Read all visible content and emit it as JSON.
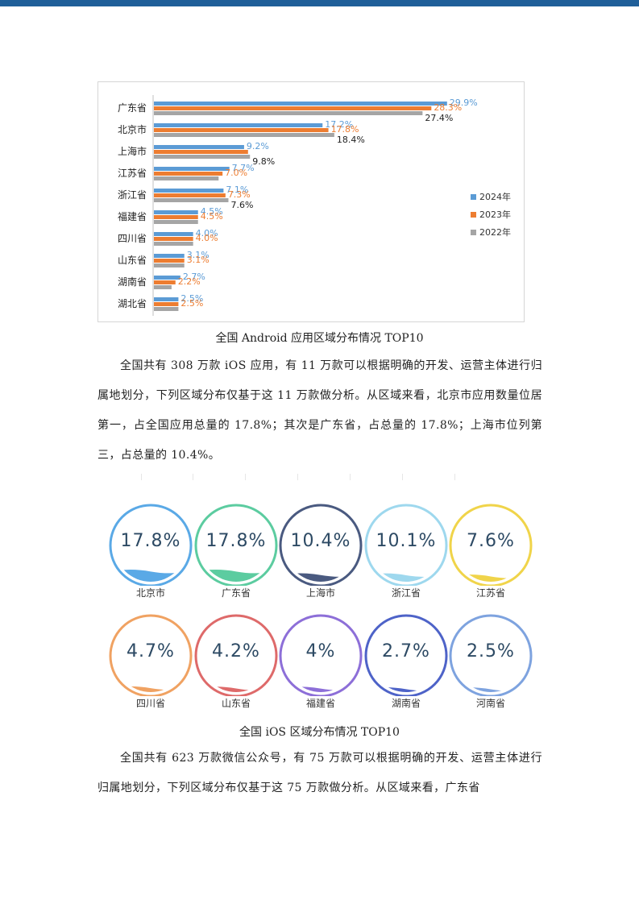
{
  "chart_data": {
    "type": "bar",
    "orientation": "horizontal",
    "categories": [
      "广东省",
      "北京市",
      "上海市",
      "江苏省",
      "浙江省",
      "福建省",
      "四川省",
      "山东省",
      "湖南省",
      "湖北省"
    ],
    "series": [
      {
        "name": "2024年",
        "color": "#5b9bd5",
        "values": [
          29.9,
          17.2,
          9.2,
          7.7,
          7.1,
          4.5,
          4.0,
          3.1,
          2.7,
          2.5
        ]
      },
      {
        "name": "2023年",
        "color": "#ed7d31",
        "values": [
          28.3,
          17.8,
          9.6,
          7.0,
          7.3,
          4.5,
          4.0,
          3.1,
          2.2,
          2.5
        ]
      },
      {
        "name": "2022年",
        "color": "#a5a5a5",
        "values": [
          27.4,
          18.4,
          9.8,
          6.6,
          7.6,
          4.5,
          4.0,
          3.1,
          1.8,
          2.5
        ]
      }
    ],
    "data_labels": [
      [
        "29.9%",
        "17.2%",
        "9.2%",
        "7.7%",
        "7.1%",
        "4.5%",
        "4.0%",
        "3.1%",
        "2.7%",
        "2.5%"
      ],
      [
        "28.3%",
        "17.8%",
        "",
        "7.0%",
        "7.3%",
        "4.5%",
        "4.0%",
        "3.1%",
        "2.2%",
        "2.5%"
      ],
      [
        "27.4%",
        "18.4%",
        "9.8%",
        "",
        "7.6%",
        "",
        "",
        "",
        "",
        ""
      ]
    ],
    "xlim": [
      0,
      30
    ],
    "legend_position": "right",
    "grid": false
  },
  "captions": {
    "android": "全国 Android 应用区域分布情况 TOP10",
    "ios": "全国 iOS 区域分布情况 TOP10"
  },
  "paragraphs": {
    "ios_intro": "全国共有 308 万款 iOS 应用，有 11 万款可以根据明确的开发、运营主体进行归属地划分，下列区域分布仅基于这 11 万款做分析。从区域来看，北京市应用数量位居第一，占全国应用总量的 17.8%；其次是广东省，占总量的 17.8%；上海市位列第三，占总量的 10.4%。",
    "wechat_intro": "全国共有 623 万款微信公众号，有 75 万款可以根据明确的开发、运营主体进行归属地划分，下列区域分布仅基于这 75 万款做分析。从区域来看，广东省"
  },
  "ios_regions": [
    {
      "label": "北京市",
      "value": "17.8%",
      "fill": 0.178,
      "color": "#5aa9e6"
    },
    {
      "label": "广东省",
      "value": "17.8%",
      "fill": 0.178,
      "color": "#5ccca0"
    },
    {
      "label": "上海市",
      "value": "10.4%",
      "fill": 0.104,
      "color": "#4a5a80"
    },
    {
      "label": "浙江省",
      "value": "10.1%",
      "fill": 0.101,
      "color": "#9ed8ee"
    },
    {
      "label": "江苏省",
      "value": "7.6%",
      "fill": 0.076,
      "color": "#f0d44a"
    },
    {
      "label": "四川省",
      "value": "4.7%",
      "fill": 0.047,
      "color": "#f0a262"
    },
    {
      "label": "山东省",
      "value": "4.2%",
      "fill": 0.042,
      "color": "#de6a6a"
    },
    {
      "label": "福建省",
      "value": "4%",
      "fill": 0.04,
      "color": "#8d6fd8"
    },
    {
      "label": "湖南省",
      "value": "2.7%",
      "fill": 0.027,
      "color": "#4e63c8"
    },
    {
      "label": "河南省",
      "value": "2.5%",
      "fill": 0.025,
      "color": "#7ea3df"
    }
  ]
}
